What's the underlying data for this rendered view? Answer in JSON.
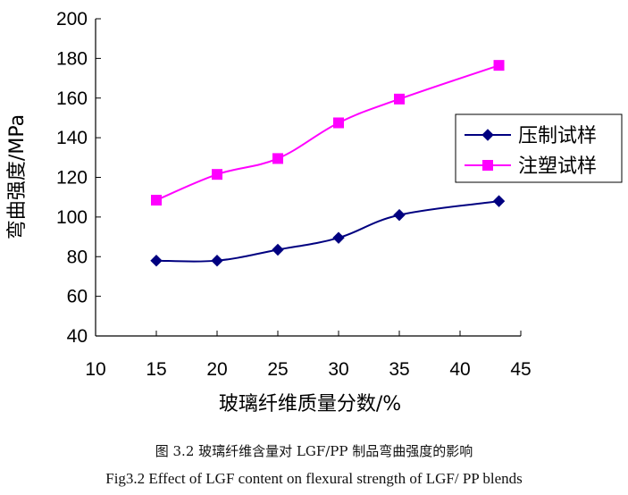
{
  "chart_data": {
    "type": "line",
    "xlabel": "玻璃纤维质量分数/%",
    "ylabel": "弯曲强度/MPa",
    "xlim": [
      10,
      45
    ],
    "ylim": [
      40,
      200
    ],
    "xticks": [
      10,
      15,
      20,
      25,
      30,
      35,
      40,
      45
    ],
    "yticks": [
      40,
      60,
      80,
      100,
      120,
      140,
      160,
      180,
      200
    ],
    "grid": false,
    "legend_position": "right",
    "series": [
      {
        "name": "压制试样",
        "marker": "diamond",
        "color": "#000080",
        "x": [
          15,
          20,
          25,
          30,
          35,
          43.2
        ],
        "y": [
          78,
          78,
          83.5,
          89.5,
          101,
          108
        ]
      },
      {
        "name": "注塑试样",
        "marker": "square",
        "color": "#FF00FF",
        "x": [
          15,
          20,
          25,
          30,
          35,
          43.2
        ],
        "y": [
          108.5,
          121.5,
          129.5,
          147.5,
          159.5,
          176.5
        ]
      }
    ]
  },
  "caption": {
    "cn": "图 3.2  玻璃纤维含量对 LGF/PP 制品弯曲强度的影响",
    "en": "Fig3.2 Effect of LGF content on flexural strength of LGF/ PP blends"
  }
}
